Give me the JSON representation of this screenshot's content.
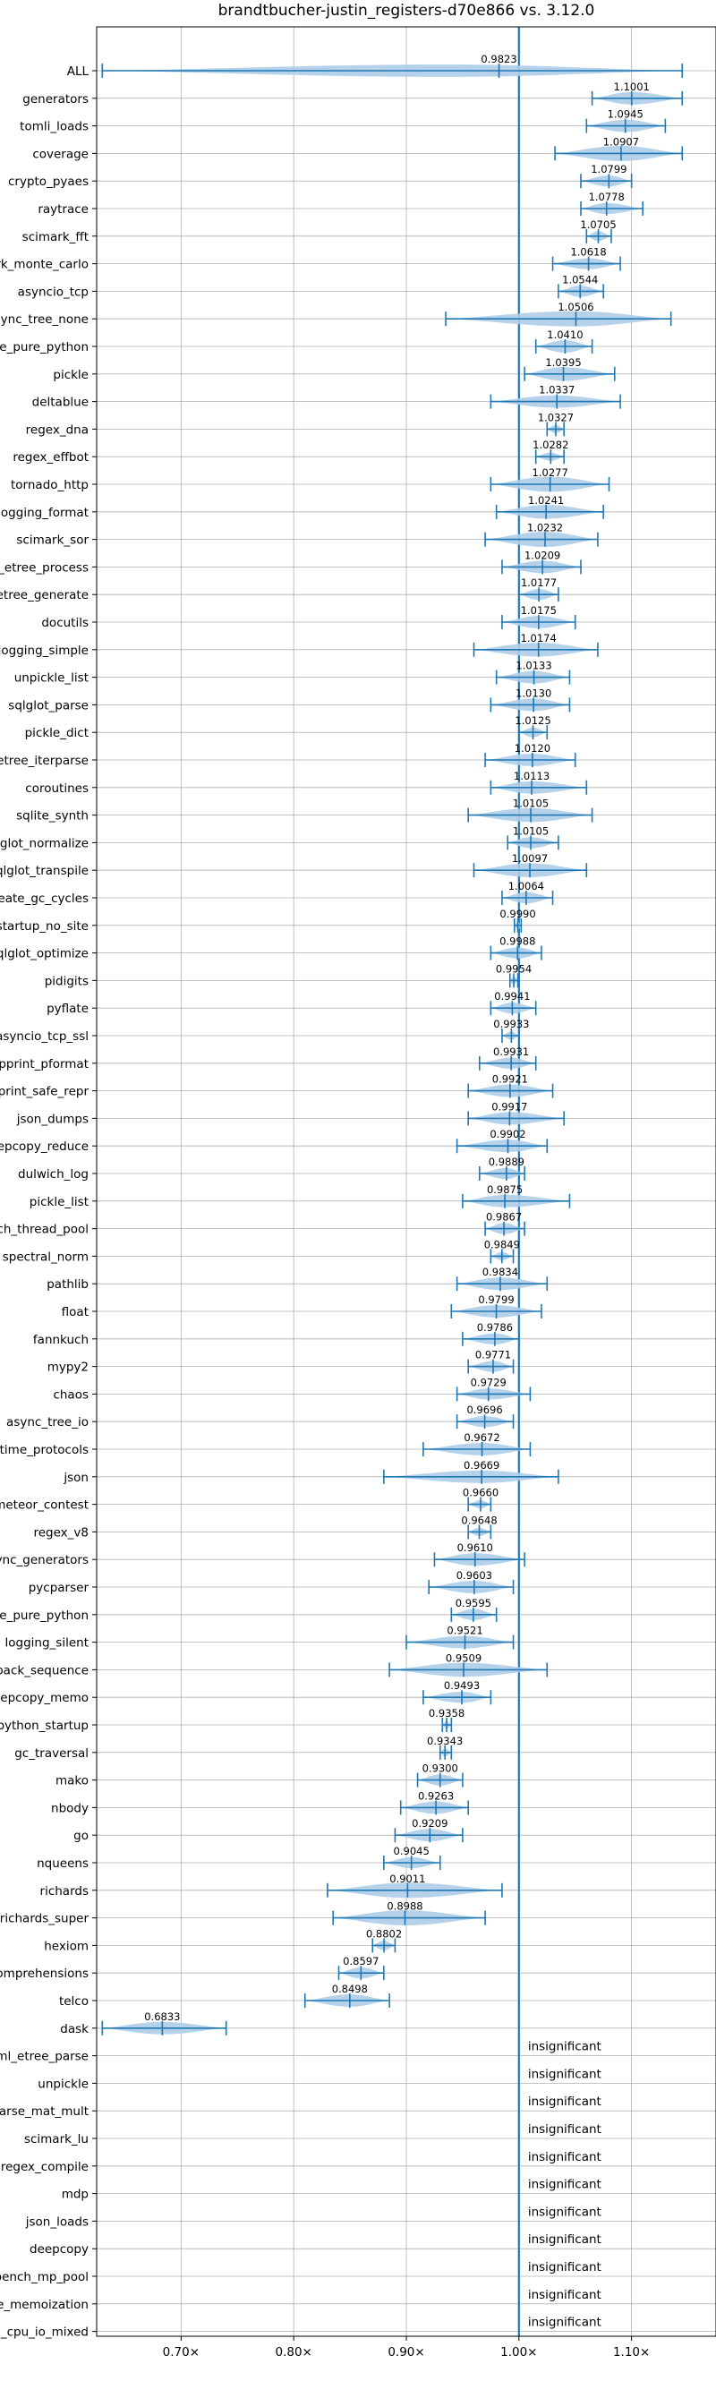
{
  "chart_data": {
    "type": "violin",
    "title": "brandtbucher-justin_registers-d70e866 vs. 3.12.0",
    "xlim": [
      0.625,
      1.175
    ],
    "xticks": [
      0.7,
      0.8,
      0.9,
      1.0,
      1.1
    ],
    "xtick_labels": [
      "0.70×",
      "0.80×",
      "0.90×",
      "1.00×",
      "1.10×"
    ],
    "grid": true,
    "reference_line": 1.0,
    "colors": {
      "accent": "#1f77b4",
      "violin": "#aecde8"
    },
    "insignificant_label": "insignificant",
    "benchmarks": [
      {
        "name": "ALL",
        "value": 0.9823,
        "label": "0.9823",
        "min": 0.63,
        "max": 1.145,
        "width": 0.45,
        "peak": 0.935
      },
      {
        "name": "generators",
        "value": 1.1001,
        "label": "1.1001",
        "min": 1.065,
        "max": 1.145,
        "width": 0.45
      },
      {
        "name": "tomli_loads",
        "value": 1.0945,
        "label": "1.0945",
        "min": 1.06,
        "max": 1.13,
        "width": 0.45
      },
      {
        "name": "coverage",
        "value": 1.0907,
        "label": "1.0907",
        "min": 1.032,
        "max": 1.145,
        "width": 0.55
      },
      {
        "name": "crypto_pyaes",
        "value": 1.0799,
        "label": "1.0799",
        "min": 1.055,
        "max": 1.1,
        "width": 0.4
      },
      {
        "name": "raytrace",
        "value": 1.0778,
        "label": "1.0778",
        "min": 1.055,
        "max": 1.11,
        "width": 0.4
      },
      {
        "name": "scimark_fft",
        "value": 1.0705,
        "label": "1.0705",
        "min": 1.06,
        "max": 1.082,
        "width": 0.35
      },
      {
        "name": "scimark_monte_carlo",
        "value": 1.0618,
        "label": "1.0618",
        "min": 1.03,
        "max": 1.09,
        "width": 0.4
      },
      {
        "name": "asyncio_tcp",
        "value": 1.0544,
        "label": "1.0544",
        "min": 1.035,
        "max": 1.075,
        "width": 0.4
      },
      {
        "name": "async_tree_none",
        "value": 1.0506,
        "label": "1.0506",
        "min": 0.935,
        "max": 1.135,
        "width": 0.55
      },
      {
        "name": "pickle_pure_python",
        "value": 1.041,
        "label": "1.0410",
        "min": 1.015,
        "max": 1.065,
        "width": 0.45
      },
      {
        "name": "pickle",
        "value": 1.0395,
        "label": "1.0395",
        "min": 1.005,
        "max": 1.085,
        "width": 0.5
      },
      {
        "name": "deltablue",
        "value": 1.0337,
        "label": "1.0337",
        "min": 0.975,
        "max": 1.09,
        "width": 0.45
      },
      {
        "name": "regex_dna",
        "value": 1.0327,
        "label": "1.0327",
        "min": 1.025,
        "max": 1.04,
        "width": 0.3
      },
      {
        "name": "regex_effbot",
        "value": 1.0282,
        "label": "1.0282",
        "min": 1.015,
        "max": 1.04,
        "width": 0.3
      },
      {
        "name": "tornado_http",
        "value": 1.0277,
        "label": "1.0277",
        "min": 0.975,
        "max": 1.08,
        "width": 0.55
      },
      {
        "name": "logging_format",
        "value": 1.0241,
        "label": "1.0241",
        "min": 0.98,
        "max": 1.075,
        "width": 0.5
      },
      {
        "name": "scimark_sor",
        "value": 1.0232,
        "label": "1.0232",
        "min": 0.97,
        "max": 1.07,
        "width": 0.55
      },
      {
        "name": "xml_etree_process",
        "value": 1.0209,
        "label": "1.0209",
        "min": 0.985,
        "max": 1.055,
        "width": 0.45
      },
      {
        "name": "xml_etree_generate",
        "value": 1.0177,
        "label": "1.0177",
        "min": 1.0,
        "max": 1.035,
        "width": 0.4
      },
      {
        "name": "docutils",
        "value": 1.0175,
        "label": "1.0175",
        "min": 0.985,
        "max": 1.05,
        "width": 0.45
      },
      {
        "name": "logging_simple",
        "value": 1.0174,
        "label": "1.0174",
        "min": 0.96,
        "max": 1.07,
        "width": 0.5
      },
      {
        "name": "unpickle_list",
        "value": 1.0133,
        "label": "1.0133",
        "min": 0.98,
        "max": 1.045,
        "width": 0.45
      },
      {
        "name": "sqlglot_parse",
        "value": 1.013,
        "label": "1.0130",
        "min": 0.975,
        "max": 1.045,
        "width": 0.45
      },
      {
        "name": "pickle_dict",
        "value": 1.0125,
        "label": "1.0125",
        "min": 1.0,
        "max": 1.025,
        "width": 0.35
      },
      {
        "name": "xml_etree_iterparse",
        "value": 1.012,
        "label": "1.0120",
        "min": 0.97,
        "max": 1.05,
        "width": 0.45
      },
      {
        "name": "coroutines",
        "value": 1.0113,
        "label": "1.0113",
        "min": 0.975,
        "max": 1.06,
        "width": 0.45
      },
      {
        "name": "sqlite_synth",
        "value": 1.0105,
        "label": "1.0105",
        "min": 0.955,
        "max": 1.065,
        "width": 0.5
      },
      {
        "name": "sqlglot_normalize",
        "value": 1.0105,
        "label": "1.0105",
        "min": 0.99,
        "max": 1.035,
        "width": 0.4
      },
      {
        "name": "sqlglot_transpile",
        "value": 1.0097,
        "label": "1.0097",
        "min": 0.96,
        "max": 1.06,
        "width": 0.5
      },
      {
        "name": "create_gc_cycles",
        "value": 1.0064,
        "label": "1.0064",
        "min": 0.985,
        "max": 1.03,
        "width": 0.4
      },
      {
        "name": "python_startup_no_site",
        "value": 0.999,
        "label": "0.9990",
        "min": 0.996,
        "max": 1.002,
        "width": 0.3
      },
      {
        "name": "sqlglot_optimize",
        "value": 0.9988,
        "label": "0.9988",
        "min": 0.975,
        "max": 1.02,
        "width": 0.4
      },
      {
        "name": "pidigits",
        "value": 0.9954,
        "label": "0.9954",
        "min": 0.992,
        "max": 0.999,
        "width": 0.3
      },
      {
        "name": "pyflate",
        "value": 0.9941,
        "label": "0.9941",
        "min": 0.975,
        "max": 1.015,
        "width": 0.4
      },
      {
        "name": "asyncio_tcp_ssl",
        "value": 0.9933,
        "label": "0.9933",
        "min": 0.985,
        "max": 1.0,
        "width": 0.3
      },
      {
        "name": "pprint_pformat",
        "value": 0.9931,
        "label": "0.9931",
        "min": 0.965,
        "max": 1.015,
        "width": 0.4
      },
      {
        "name": "pprint_safe_repr",
        "value": 0.9921,
        "label": "0.9921",
        "min": 0.955,
        "max": 1.03,
        "width": 0.45
      },
      {
        "name": "json_dumps",
        "value": 0.9917,
        "label": "0.9917",
        "min": 0.955,
        "max": 1.04,
        "width": 0.45
      },
      {
        "name": "deepcopy_reduce",
        "value": 0.9902,
        "label": "0.9902",
        "min": 0.945,
        "max": 1.025,
        "width": 0.45
      },
      {
        "name": "dulwich_log",
        "value": 0.9889,
        "label": "0.9889",
        "min": 0.965,
        "max": 1.005,
        "width": 0.4
      },
      {
        "name": "pickle_list",
        "value": 0.9875,
        "label": "0.9875",
        "min": 0.95,
        "max": 1.045,
        "width": 0.45
      },
      {
        "name": "bench_thread_pool",
        "value": 0.9867,
        "label": "0.9867",
        "min": 0.97,
        "max": 1.005,
        "width": 0.4
      },
      {
        "name": "spectral_norm",
        "value": 0.9849,
        "label": "0.9849",
        "min": 0.975,
        "max": 0.995,
        "width": 0.3
      },
      {
        "name": "pathlib",
        "value": 0.9834,
        "label": "0.9834",
        "min": 0.945,
        "max": 1.025,
        "width": 0.45
      },
      {
        "name": "float",
        "value": 0.9799,
        "label": "0.9799",
        "min": 0.94,
        "max": 1.02,
        "width": 0.45
      },
      {
        "name": "fannkuch",
        "value": 0.9786,
        "label": "0.9786",
        "min": 0.95,
        "max": 1.0,
        "width": 0.4
      },
      {
        "name": "mypy2",
        "value": 0.9771,
        "label": "0.9771",
        "min": 0.955,
        "max": 0.995,
        "width": 0.4
      },
      {
        "name": "chaos",
        "value": 0.9729,
        "label": "0.9729",
        "min": 0.945,
        "max": 1.01,
        "width": 0.4
      },
      {
        "name": "async_tree_io",
        "value": 0.9696,
        "label": "0.9696",
        "min": 0.945,
        "max": 0.995,
        "width": 0.4
      },
      {
        "name": "typing_runtime_protocols",
        "value": 0.9672,
        "label": "0.9672",
        "min": 0.915,
        "max": 1.01,
        "width": 0.45
      },
      {
        "name": "json",
        "value": 0.9669,
        "label": "0.9669",
        "min": 0.88,
        "max": 1.035,
        "width": 0.45
      },
      {
        "name": "meteor_contest",
        "value": 0.966,
        "label": "0.9660",
        "min": 0.955,
        "max": 0.975,
        "width": 0.3
      },
      {
        "name": "regex_v8",
        "value": 0.9648,
        "label": "0.9648",
        "min": 0.955,
        "max": 0.975,
        "width": 0.3
      },
      {
        "name": "async_generators",
        "value": 0.961,
        "label": "0.9610",
        "min": 0.925,
        "max": 1.005,
        "width": 0.45
      },
      {
        "name": "pycparser",
        "value": 0.9603,
        "label": "0.9603",
        "min": 0.92,
        "max": 0.995,
        "width": 0.45
      },
      {
        "name": "unpickle_pure_python",
        "value": 0.9595,
        "label": "0.9595",
        "min": 0.94,
        "max": 0.98,
        "width": 0.4
      },
      {
        "name": "logging_silent",
        "value": 0.9521,
        "label": "0.9521",
        "min": 0.9,
        "max": 0.995,
        "width": 0.45
      },
      {
        "name": "unpack_sequence",
        "value": 0.9509,
        "label": "0.9509",
        "min": 0.885,
        "max": 1.025,
        "width": 0.5
      },
      {
        "name": "deepcopy_memo",
        "value": 0.9493,
        "label": "0.9493",
        "min": 0.915,
        "max": 0.975,
        "width": 0.4
      },
      {
        "name": "python_startup",
        "value": 0.9358,
        "label": "0.9358",
        "min": 0.932,
        "max": 0.94,
        "width": 0.3
      },
      {
        "name": "gc_traversal",
        "value": 0.9343,
        "label": "0.9343",
        "min": 0.93,
        "max": 0.94,
        "width": 0.3
      },
      {
        "name": "mako",
        "value": 0.93,
        "label": "0.9300",
        "min": 0.91,
        "max": 0.95,
        "width": 0.4
      },
      {
        "name": "nbody",
        "value": 0.9263,
        "label": "0.9263",
        "min": 0.895,
        "max": 0.955,
        "width": 0.45
      },
      {
        "name": "go",
        "value": 0.9209,
        "label": "0.9209",
        "min": 0.89,
        "max": 0.95,
        "width": 0.45
      },
      {
        "name": "nqueens",
        "value": 0.9045,
        "label": "0.9045",
        "min": 0.88,
        "max": 0.93,
        "width": 0.4
      },
      {
        "name": "richards",
        "value": 0.9011,
        "label": "0.9011",
        "min": 0.83,
        "max": 0.985,
        "width": 0.55
      },
      {
        "name": "richards_super",
        "value": 0.8988,
        "label": "0.8988",
        "min": 0.835,
        "max": 0.97,
        "width": 0.55
      },
      {
        "name": "hexiom",
        "value": 0.8802,
        "label": "0.8802",
        "min": 0.87,
        "max": 0.89,
        "width": 0.35
      },
      {
        "name": "comprehensions",
        "value": 0.8597,
        "label": "0.8597",
        "min": 0.84,
        "max": 0.88,
        "width": 0.4
      },
      {
        "name": "telco",
        "value": 0.8498,
        "label": "0.8498",
        "min": 0.81,
        "max": 0.885,
        "width": 0.45
      },
      {
        "name": "dask",
        "value": 0.6833,
        "label": "0.6833",
        "min": 0.63,
        "max": 0.74,
        "width": 0.45
      }
    ],
    "insignificant": [
      "xml_etree_parse",
      "unpickle",
      "scimark_sparse_mat_mult",
      "scimark_lu",
      "regex_compile",
      "mdp",
      "json_loads",
      "deepcopy",
      "bench_mp_pool",
      "async_tree_memoization",
      "async_tree_cpu_io_mixed"
    ]
  }
}
